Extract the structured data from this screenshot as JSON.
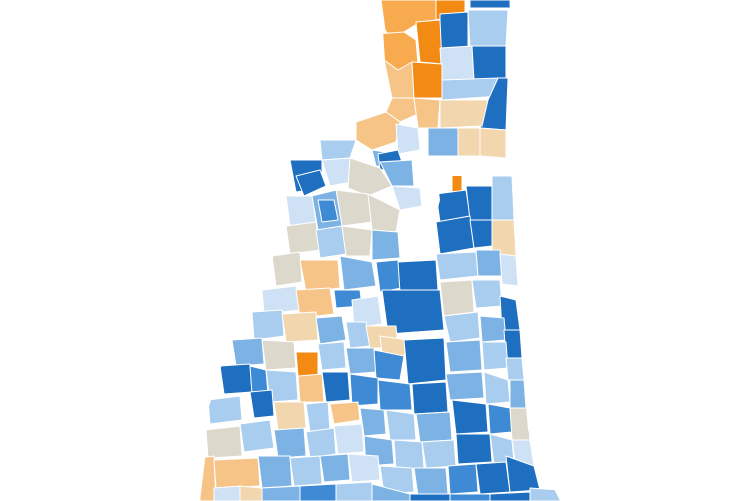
{
  "map": {
    "region": "New Hampshire",
    "palette": {
      "strong_blue": "#1f6fc0",
      "blue": "#3f8ad4",
      "mid_blue": "#7db3e4",
      "light_blue": "#a9cdef",
      "pale_blue": "#cfe2f5",
      "neutral": "#dcd8cc",
      "pale_orange": "#f2d6ad",
      "light_orange": "#f7c488",
      "mid_orange": "#f7aa4e",
      "strong_orange": "#f28a14"
    },
    "background": "#ffffff",
    "boundary_color": "#ffffff"
  }
}
